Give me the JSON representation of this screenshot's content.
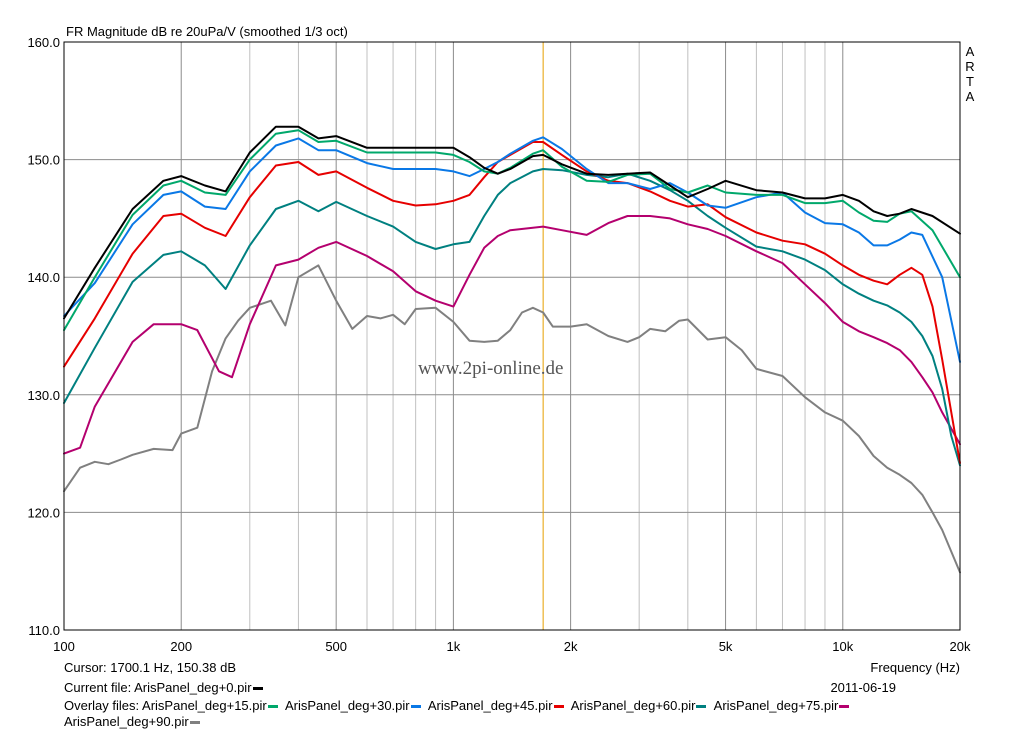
{
  "chart_data": {
    "type": "line",
    "title": "FR Magnitude dB re 20uPa/V (smoothed 1/3 oct)",
    "brand": "ARTA",
    "watermark": "www.2pi-online.de",
    "xlabel": "Frequency (Hz)",
    "x_scale": "log",
    "xlim": [
      100,
      20000
    ],
    "ylim": [
      110,
      160
    ],
    "x_ticks": [
      100,
      200,
      500,
      1000,
      2000,
      5000,
      10000,
      20000
    ],
    "x_tick_labels": [
      "100",
      "200",
      "500",
      "1k",
      "2k",
      "5k",
      "10k",
      "20k"
    ],
    "y_ticks": [
      110,
      120,
      130,
      140,
      150,
      160
    ],
    "y_tick_labels": [
      "110.0",
      "120.0",
      "130.0",
      "140.0",
      "150.0",
      "160.0"
    ],
    "grid": true,
    "cursor_freq": 1700.1,
    "cursor_text": "Cursor: 1700.1 Hz, 150.38 dB",
    "date": "2011-06-19",
    "current_file_label": "Current file: ArisPanel_deg+0.pir",
    "overlay_prefix": "Overlay files:",
    "overlay_names": [
      "ArisPanel_deg+15.pir",
      "ArisPanel_deg+30.pir",
      "ArisPanel_deg+45.pir",
      "ArisPanel_deg+60.pir",
      "ArisPanel_deg+75.pir",
      "ArisPanel_deg+90.pir"
    ],
    "colors": {
      "deg0": "#000000",
      "deg15": "#00a86b",
      "deg30": "#0a78e6",
      "deg45": "#e60000",
      "deg60": "#008080",
      "deg75": "#b4006e",
      "deg90": "#808080",
      "cursor": "#e6a000"
    },
    "series": [
      {
        "name": "ArisPanel_deg+0.pir",
        "color": "#000000",
        "x": [
          100,
          120,
          150,
          180,
          200,
          230,
          260,
          300,
          350,
          400,
          450,
          500,
          600,
          700,
          800,
          900,
          1000,
          1100,
          1200,
          1300,
          1400,
          1600,
          1700,
          1900,
          2200,
          2500,
          2800,
          3200,
          3600,
          4000,
          4500,
          5000,
          6000,
          7000,
          8000,
          9000,
          10000,
          11000,
          12000,
          13000,
          14000,
          15000,
          17000,
          20000
        ],
        "y": [
          136.5,
          140.8,
          145.8,
          148.2,
          148.6,
          147.8,
          147.3,
          150.6,
          152.8,
          152.8,
          151.8,
          152.0,
          151.0,
          151.0,
          151.0,
          151.0,
          151.0,
          150.2,
          149.3,
          148.8,
          149.2,
          150.3,
          150.4,
          149.6,
          148.8,
          148.7,
          148.8,
          148.9,
          147.8,
          146.8,
          147.5,
          148.2,
          147.4,
          147.2,
          146.7,
          146.7,
          147.0,
          146.5,
          145.6,
          145.2,
          145.4,
          145.8,
          145.2,
          143.7
        ]
      },
      {
        "name": "ArisPanel_deg+15.pir",
        "color": "#00a86b",
        "x": [
          100,
          120,
          150,
          180,
          200,
          230,
          260,
          300,
          350,
          400,
          450,
          500,
          600,
          700,
          800,
          900,
          1000,
          1100,
          1200,
          1300,
          1400,
          1600,
          1700,
          1900,
          2200,
          2500,
          2800,
          3200,
          3600,
          4000,
          4500,
          5000,
          6000,
          7000,
          8000,
          9000,
          10000,
          11000,
          12000,
          13000,
          14000,
          15000,
          17000,
          20000
        ],
        "y": [
          135.5,
          140.0,
          145.3,
          147.8,
          148.2,
          147.2,
          147.0,
          150.0,
          152.2,
          152.5,
          151.5,
          151.6,
          150.6,
          150.6,
          150.6,
          150.6,
          150.4,
          149.8,
          149.0,
          148.8,
          149.3,
          150.5,
          150.8,
          149.4,
          148.2,
          148.1,
          148.7,
          148.8,
          147.5,
          147.2,
          147.8,
          147.2,
          147.0,
          147.0,
          146.3,
          146.3,
          146.5,
          145.5,
          144.8,
          144.7,
          145.4,
          145.6,
          144.0,
          140.0
        ]
      },
      {
        "name": "ArisPanel_deg+30.pir",
        "color": "#0a78e6",
        "x": [
          100,
          120,
          150,
          180,
          200,
          230,
          260,
          300,
          350,
          400,
          450,
          500,
          600,
          700,
          800,
          900,
          1000,
          1100,
          1200,
          1300,
          1400,
          1600,
          1700,
          1900,
          2200,
          2500,
          2800,
          3200,
          3600,
          4000,
          4500,
          5000,
          6000,
          7000,
          8000,
          9000,
          10000,
          11000,
          12000,
          13000,
          14000,
          15000,
          16000,
          18000,
          20000
        ],
        "y": [
          136.7,
          139.5,
          144.5,
          147.0,
          147.3,
          146.0,
          145.8,
          149.0,
          151.2,
          151.8,
          150.8,
          150.8,
          149.7,
          149.2,
          149.2,
          149.2,
          149.0,
          148.6,
          149.2,
          149.8,
          150.5,
          151.6,
          151.9,
          150.9,
          149.2,
          148.0,
          148.0,
          147.5,
          148.0,
          147.2,
          146.1,
          145.9,
          146.8,
          147.2,
          145.5,
          144.6,
          144.5,
          143.8,
          142.7,
          142.7,
          143.2,
          143.8,
          143.6,
          140.0,
          132.8
        ]
      },
      {
        "name": "ArisPanel_deg+45.pir",
        "color": "#e60000",
        "x": [
          100,
          120,
          150,
          180,
          200,
          230,
          260,
          300,
          350,
          400,
          450,
          500,
          600,
          700,
          800,
          900,
          1000,
          1100,
          1200,
          1300,
          1400,
          1600,
          1700,
          1900,
          2200,
          2500,
          2800,
          3200,
          3600,
          4000,
          4500,
          5000,
          6000,
          7000,
          8000,
          9000,
          10000,
          11000,
          12000,
          13000,
          14000,
          15000,
          16000,
          17000,
          18000,
          20000
        ],
        "y": [
          132.4,
          136.5,
          142.0,
          145.2,
          145.4,
          144.2,
          143.5,
          146.8,
          149.5,
          149.8,
          148.7,
          149.0,
          147.6,
          146.5,
          146.1,
          146.2,
          146.5,
          147.0,
          148.5,
          149.8,
          150.4,
          151.5,
          151.5,
          150.4,
          149.0,
          148.2,
          148.0,
          147.3,
          146.5,
          146.0,
          146.2,
          145.1,
          143.8,
          143.1,
          142.8,
          142.0,
          141.0,
          140.2,
          139.7,
          139.4,
          140.2,
          140.8,
          140.2,
          137.5,
          133.0,
          124.2
        ]
      },
      {
        "name": "ArisPanel_deg+60.pir",
        "color": "#008080",
        "x": [
          100,
          120,
          150,
          180,
          200,
          230,
          260,
          300,
          350,
          400,
          450,
          500,
          600,
          700,
          800,
          900,
          1000,
          1100,
          1200,
          1300,
          1400,
          1600,
          1700,
          1900,
          2200,
          2500,
          2800,
          3200,
          3600,
          4000,
          4500,
          5000,
          6000,
          7000,
          8000,
          9000,
          10000,
          11000,
          12000,
          13000,
          14000,
          15000,
          16000,
          17000,
          18000,
          19000,
          20000
        ],
        "y": [
          129.3,
          134.0,
          139.6,
          141.9,
          142.2,
          141.0,
          139.0,
          142.7,
          145.8,
          146.5,
          145.6,
          146.4,
          145.2,
          144.3,
          143.0,
          142.4,
          142.8,
          143.0,
          145.2,
          147.0,
          148.0,
          149.0,
          149.2,
          149.1,
          148.7,
          148.5,
          148.8,
          148.2,
          147.4,
          146.5,
          145.2,
          144.2,
          142.6,
          142.2,
          141.5,
          140.6,
          139.4,
          138.6,
          138.0,
          137.6,
          137.0,
          136.2,
          135.0,
          133.3,
          130.5,
          126.5,
          124.0
        ]
      },
      {
        "name": "ArisPanel_deg+75.pir",
        "color": "#b4006e",
        "x": [
          100,
          110,
          120,
          150,
          170,
          200,
          220,
          250,
          270,
          300,
          350,
          400,
          450,
          500,
          600,
          700,
          800,
          900,
          1000,
          1100,
          1200,
          1300,
          1400,
          1600,
          1700,
          1900,
          2200,
          2500,
          2800,
          3200,
          3600,
          4000,
          4500,
          5000,
          6000,
          7000,
          8000,
          9000,
          10000,
          11000,
          12000,
          13000,
          14000,
          15000,
          16000,
          17000,
          18000,
          20000
        ],
        "y": [
          125.0,
          125.5,
          129.0,
          134.5,
          136.0,
          136.0,
          135.5,
          132.0,
          131.5,
          136.0,
          141.0,
          141.5,
          142.5,
          143.0,
          141.8,
          140.5,
          138.8,
          138.0,
          137.5,
          140.2,
          142.5,
          143.5,
          144.0,
          144.2,
          144.3,
          144.0,
          143.6,
          144.6,
          145.2,
          145.2,
          145.0,
          144.5,
          144.1,
          143.5,
          142.2,
          141.2,
          139.4,
          137.8,
          136.2,
          135.4,
          134.9,
          134.4,
          133.8,
          132.8,
          131.5,
          130.2,
          128.5,
          125.8
        ]
      },
      {
        "name": "ArisPanel_deg+90.pir",
        "color": "#808080",
        "x": [
          100,
          110,
          120,
          130,
          140,
          150,
          170,
          190,
          200,
          220,
          240,
          260,
          280,
          300,
          340,
          370,
          400,
          450,
          500,
          550,
          600,
          650,
          700,
          750,
          800,
          900,
          1000,
          1100,
          1200,
          1300,
          1400,
          1500,
          1600,
          1700,
          1800,
          2000,
          2200,
          2500,
          2800,
          3000,
          3200,
          3500,
          3800,
          4000,
          4500,
          5000,
          5500,
          6000,
          7000,
          8000,
          9000,
          10000,
          11000,
          12000,
          13000,
          14000,
          15000,
          16000,
          17000,
          18000,
          20000
        ],
        "y": [
          121.8,
          123.8,
          124.3,
          124.1,
          124.5,
          124.9,
          125.4,
          125.3,
          126.7,
          127.2,
          132.0,
          134.8,
          136.3,
          137.4,
          138.0,
          135.9,
          140.0,
          141.0,
          138.0,
          135.6,
          136.7,
          136.5,
          136.8,
          136.0,
          137.3,
          137.4,
          136.2,
          134.6,
          134.5,
          134.6,
          135.5,
          137.0,
          137.4,
          137.0,
          135.8,
          135.8,
          136.0,
          135.0,
          134.5,
          134.9,
          135.6,
          135.4,
          136.3,
          136.4,
          134.7,
          134.9,
          133.8,
          132.2,
          131.6,
          129.8,
          128.5,
          127.8,
          126.5,
          124.8,
          123.8,
          123.2,
          122.5,
          121.5,
          120.0,
          118.5,
          114.9
        ]
      }
    ]
  }
}
